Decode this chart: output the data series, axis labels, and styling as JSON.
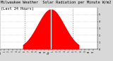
{
  "title_line1": "Milwaukee Weather  Solar Radiation per Minute W/m2",
  "title_line2": "(Last 24 Hours)",
  "title_fontsize": 3.8,
  "background_color": "#d8d8d8",
  "plot_bg_color": "#ffffff",
  "fill_color": "#ff0000",
  "peak_line_color": "#ffffff",
  "grid_color": "#888888",
  "ylim": [
    0,
    600
  ],
  "num_points": 1440,
  "peak_hour": 12.5,
  "x_ticks_hours": [
    0,
    1,
    2,
    3,
    4,
    5,
    6,
    7,
    8,
    9,
    10,
    11,
    12,
    13,
    14,
    15,
    16,
    17,
    18,
    19,
    20,
    21,
    22,
    23
  ],
  "x_tick_labels": [
    "12a",
    "1",
    "2",
    "3",
    "4",
    "5",
    "6",
    "7",
    "8",
    "9",
    "10",
    "11",
    "12p",
    "1",
    "2",
    "3",
    "4",
    "5",
    "6",
    "7",
    "8",
    "9",
    "10",
    "11"
  ],
  "dashed_lines_hours": [
    6,
    12,
    18
  ],
  "horiz_grid_values": [
    100,
    200,
    300,
    400,
    500
  ],
  "solar_start": 5.5,
  "solar_end": 19.5,
  "peak_value": 580,
  "ytick_vals": [
    0,
    100,
    200,
    300,
    400,
    500
  ],
  "ytick_labels": [
    "0",
    "1",
    "2",
    "3",
    "4",
    "5"
  ]
}
